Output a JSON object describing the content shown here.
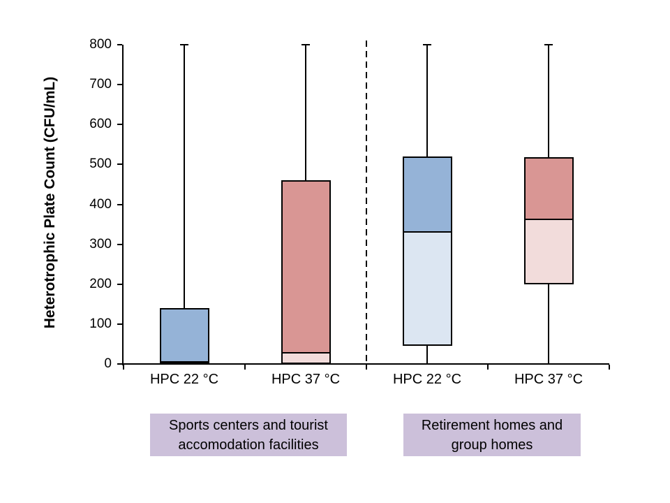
{
  "chart_data": {
    "type": "boxplot",
    "title": "",
    "ylabel": "Heterotrophic Plate Count (CFU/mL)",
    "xlabel": "",
    "ylim": [
      0,
      800
    ],
    "yticks": [
      800,
      700,
      600,
      500,
      400,
      300,
      200,
      100,
      0
    ],
    "grid": false,
    "legend": "none",
    "categories": [
      "HPC 22 °C",
      "HPC 37 °C",
      "HPC 22 °C",
      "HPC 37 °C"
    ],
    "boxes": [
      {
        "category": "HPC 22 °C",
        "group": "Sports centers and tourist accomodation facilities",
        "whisker_low": 0,
        "q1": 0,
        "median": 0,
        "q3": 140,
        "whisker_high": 800,
        "fill_lower": "#DCE6F2",
        "fill_upper": "#95B3D7"
      },
      {
        "category": "HPC 37 °C",
        "group": "Sports centers and tourist accomodation facilities",
        "whisker_low": 0,
        "q1": 0,
        "median": 25,
        "q3": 460,
        "whisker_high": 800,
        "fill_lower": "#F2DCDB",
        "fill_upper": "#D99694"
      },
      {
        "category": "HPC 22 °C",
        "group": "Retirement homes and group homes",
        "whisker_low": 0,
        "q1": 45,
        "median": 330,
        "q3": 520,
        "whisker_high": 800,
        "fill_lower": "#DCE6F2",
        "fill_upper": "#95B3D7"
      },
      {
        "category": "HPC 37 °C",
        "group": "Retirement homes and group homes",
        "whisker_low": 0,
        "q1": 200,
        "median": 360,
        "q3": 518,
        "whisker_high": 800,
        "fill_lower": "#F2DCDB",
        "fill_upper": "#D99694"
      }
    ],
    "separator": {
      "style": "dashed",
      "color": "#000000",
      "between_category_indexes": [
        1,
        2
      ]
    },
    "group_labels": [
      {
        "line1": "Sports centers and tourist",
        "line2": "accomodation facilities",
        "bg_color": "#CCC0DA"
      },
      {
        "line1": "Retirement homes and",
        "line2": "group homes",
        "bg_color": "#CCC0DA"
      }
    ],
    "colors": {
      "axis": "#000000",
      "box_border": "#000000",
      "text": "#000000",
      "background": "#FFFFFF"
    }
  }
}
